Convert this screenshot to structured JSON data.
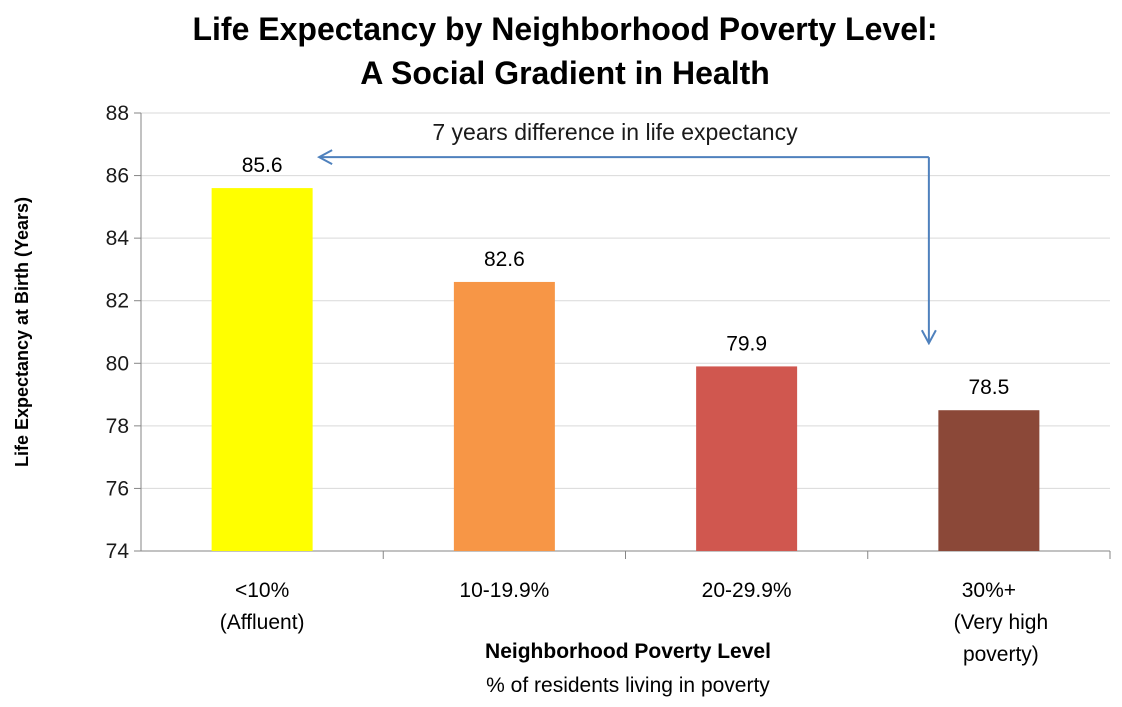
{
  "chart_data": {
    "type": "bar",
    "title": [
      "Life Expectancy by Neighborhood Poverty Level:",
      "A Social Gradient in Health"
    ],
    "ylabel": "Life Expectancy at Birth (Years)",
    "xlabel": "Neighborhood Poverty Level",
    "xlabel_sub": "% of residents living in poverty",
    "categories": [
      [
        "<10%",
        "(Affluent)"
      ],
      [
        "10-19.9%"
      ],
      [
        "20-29.9%"
      ],
      [
        "30%+",
        "(Very high",
        "poverty)"
      ]
    ],
    "values": [
      85.6,
      82.6,
      79.9,
      78.5
    ],
    "data_labels": [
      "85.6",
      "82.6",
      "79.9",
      "78.5"
    ],
    "colors": [
      "#ffff00",
      "#f79646",
      "#d0574f",
      "#8b4838"
    ],
    "ylim": [
      74,
      88
    ],
    "yticks": [
      74,
      76,
      78,
      80,
      82,
      84,
      86,
      88
    ],
    "grid": true,
    "legend": "none",
    "annotation": {
      "text": "7 years difference in life expectancy",
      "from_category": 3,
      "to_category": 0,
      "color": "#4f81bd"
    }
  }
}
